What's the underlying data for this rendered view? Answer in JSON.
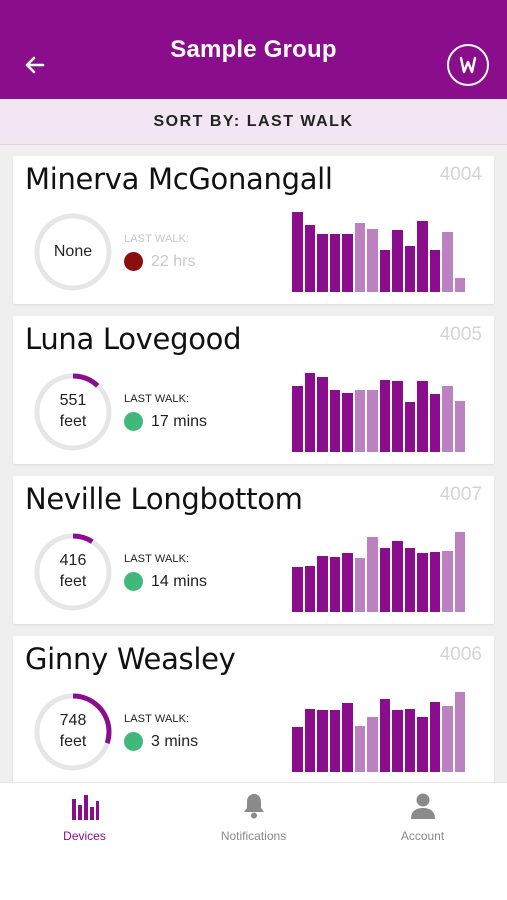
{
  "header": {
    "title": "Sample Group",
    "back_icon": "arrow-left-icon",
    "logo_icon": "w-logo-icon",
    "background": "#8a0d8c"
  },
  "sort": {
    "label": "SORT BY: LAST WALK"
  },
  "colors": {
    "bar_dark": "#8a0d8c",
    "bar_light": "#bb82bf",
    "ring_track": "#e6e6e6",
    "ring_fill": "#8a0d8c",
    "status_green": "#3fb87a",
    "status_red": "#8b0d0d"
  },
  "devices": [
    {
      "name": "Minerva McGonangall",
      "id": "4004",
      "ring_text": "None",
      "ring_progress": 0,
      "last_walk_label": "LAST WALK:",
      "last_walk": "22 hrs",
      "status": "red",
      "dimmed": true,
      "bars": [
        1.0,
        0.84,
        0.72,
        0.73,
        0.72,
        0.86,
        0.79,
        0.53,
        0.77,
        0.58,
        0.89,
        0.53,
        0.75,
        0.17
      ],
      "bar_tones": [
        "d",
        "d",
        "d",
        "d",
        "d",
        "l",
        "l",
        "d",
        "d",
        "d",
        "d",
        "d",
        "l",
        "l"
      ]
    },
    {
      "name": "Luna Lovegood",
      "id": "4005",
      "ring_text": "551\nfeet",
      "ring_progress": 0.12,
      "last_walk_label": "LAST WALK:",
      "last_walk": "17 mins",
      "status": "green",
      "dimmed": false,
      "bars": [
        0.82,
        0.99,
        0.94,
        0.77,
        0.74,
        0.77,
        0.77,
        0.9,
        0.89,
        0.62,
        0.89,
        0.72,
        0.82,
        0.64
      ],
      "bar_tones": [
        "d",
        "d",
        "d",
        "d",
        "d",
        "l",
        "l",
        "d",
        "d",
        "d",
        "d",
        "d",
        "l",
        "l"
      ]
    },
    {
      "name": "Neville Longbottom",
      "id": "4007",
      "ring_text": "416\nfeet",
      "ring_progress": 0.09,
      "last_walk_label": "LAST WALK:",
      "last_walk": "14 mins",
      "status": "green",
      "dimmed": false,
      "bars": [
        0.56,
        0.58,
        0.7,
        0.69,
        0.74,
        0.68,
        0.94,
        0.8,
        0.89,
        0.8,
        0.74,
        0.75,
        0.76,
        1.0
      ],
      "bar_tones": [
        "d",
        "d",
        "d",
        "d",
        "d",
        "l",
        "l",
        "d",
        "d",
        "d",
        "d",
        "d",
        "l",
        "l"
      ]
    },
    {
      "name": "Ginny Weasley",
      "id": "4006",
      "ring_text": "748\nfeet",
      "ring_progress": 0.3,
      "last_walk_label": "LAST WALK:",
      "last_walk": "3 mins",
      "status": "green",
      "dimmed": false,
      "bars": [
        0.56,
        0.79,
        0.77,
        0.78,
        0.86,
        0.57,
        0.69,
        0.91,
        0.77,
        0.79,
        0.69,
        0.87,
        0.82,
        1.0
      ],
      "bar_tones": [
        "d",
        "d",
        "d",
        "d",
        "d",
        "l",
        "l",
        "d",
        "d",
        "d",
        "d",
        "d",
        "l",
        "l"
      ]
    }
  ],
  "tabs": [
    {
      "label": "Devices",
      "icon": "bar-chart-icon",
      "active": true
    },
    {
      "label": "Notifications",
      "icon": "bell-icon",
      "active": false
    },
    {
      "label": "Account",
      "icon": "person-icon",
      "active": false
    }
  ]
}
